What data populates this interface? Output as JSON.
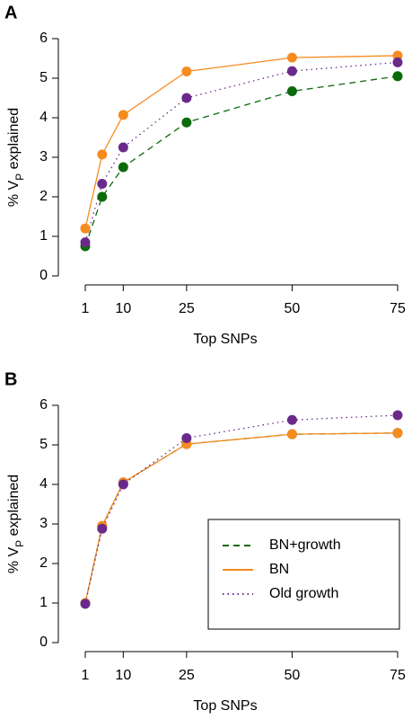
{
  "chart_data": [
    {
      "type": "line",
      "panel_label": "A",
      "x_label": "Top SNPs",
      "y_label": [
        "% V",
        "P",
        " explained"
      ],
      "x": [
        1,
        5,
        10,
        25,
        50,
        75
      ],
      "xlim": [
        1,
        75
      ],
      "xticks": [
        1,
        10,
        25,
        50,
        75
      ],
      "ylim": [
        0,
        6
      ],
      "yticks": [
        0,
        1,
        2,
        3,
        4,
        5,
        6
      ],
      "legend": false,
      "series": [
        {
          "color": "#0b6a0b",
          "dash": "dashed",
          "values": [
            0.75,
            2.0,
            2.75,
            3.88,
            4.67,
            5.05
          ]
        },
        {
          "color": "#f68b1f",
          "dash": "solid",
          "values": [
            1.2,
            3.07,
            4.07,
            5.17,
            5.52,
            5.57
          ]
        },
        {
          "color": "#6a2a8a",
          "dash": "dotted",
          "values": [
            0.85,
            2.33,
            3.25,
            4.5,
            5.18,
            5.4
          ]
        }
      ]
    },
    {
      "type": "line",
      "panel_label": "B",
      "x_label": "Top SNPs",
      "y_label": [
        "% V",
        "P",
        " explained"
      ],
      "x": [
        1,
        5,
        10,
        25,
        50,
        75
      ],
      "xlim": [
        1,
        75
      ],
      "xticks": [
        1,
        10,
        25,
        50,
        75
      ],
      "ylim": [
        0,
        6
      ],
      "yticks": [
        0,
        1,
        2,
        3,
        4,
        5,
        6
      ],
      "legend": true,
      "series": [
        {
          "name": "BN+growth",
          "color": "#0b6a0b",
          "dash": "dashed",
          "values": [
            1.0,
            2.95,
            4.05,
            5.02,
            5.27,
            5.3
          ]
        },
        {
          "name": "BN",
          "color": "#f68b1f",
          "dash": "solid",
          "values": [
            1.0,
            2.95,
            4.05,
            5.02,
            5.27,
            5.3
          ]
        },
        {
          "name": "Old growth",
          "color": "#6a2a8a",
          "dash": "dotted",
          "values": [
            0.98,
            2.88,
            4.0,
            5.17,
            5.63,
            5.75
          ]
        }
      ]
    }
  ]
}
